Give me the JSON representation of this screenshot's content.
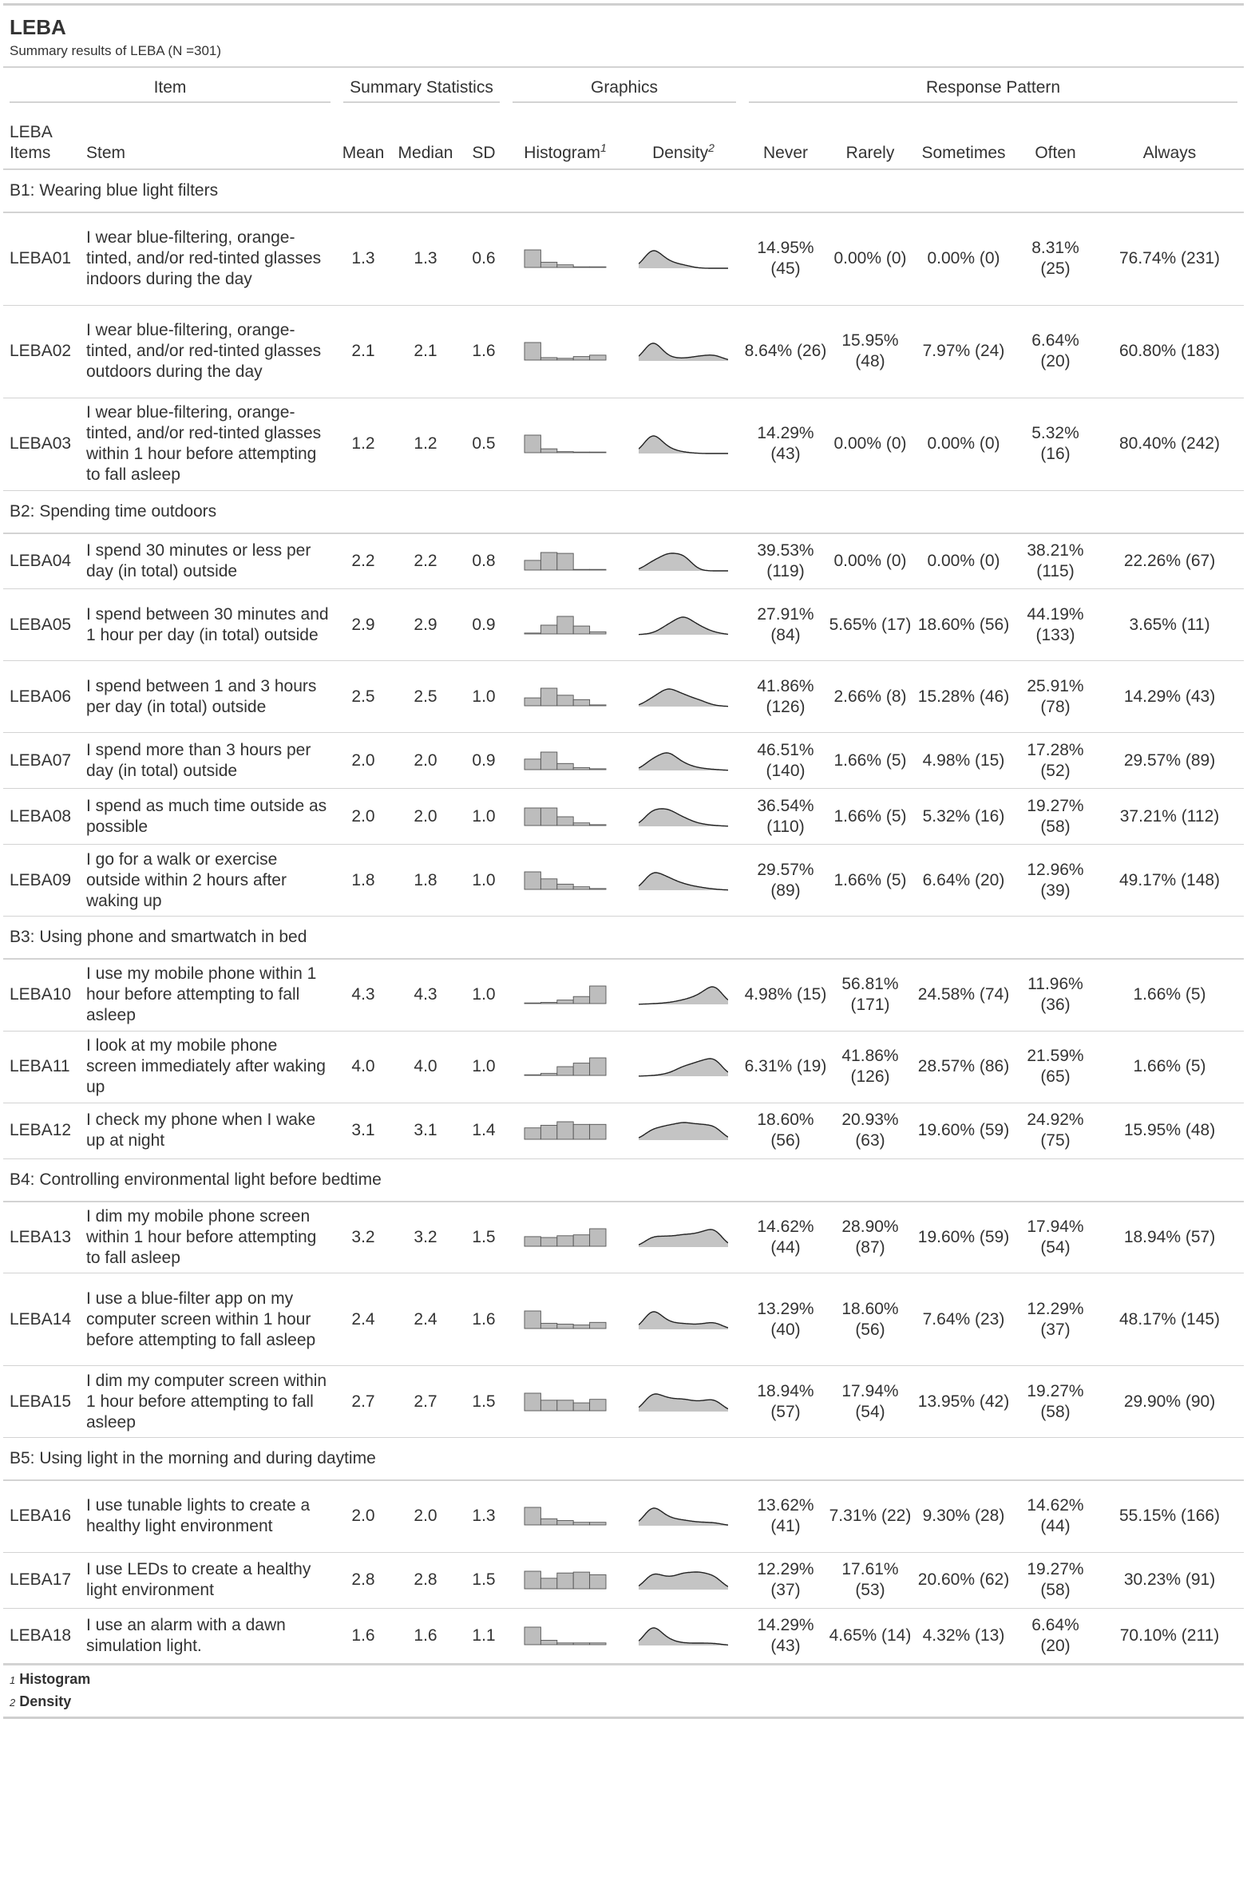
{
  "title": "LEBA",
  "subtitle": "Summary results of LEBA (N =301)",
  "spanners": {
    "item": "Item",
    "summary": "Summary Statistics",
    "graphics": "Graphics",
    "response": "Response Pattern"
  },
  "columns": {
    "items": "LEBA Items",
    "stem": "Stem",
    "mean": "Mean",
    "median": "Median",
    "sd": "SD",
    "histogram": "Histogram",
    "density": "Density",
    "never": "Never",
    "rarely": "Rarely",
    "sometimes": "Sometimes",
    "often": "Often",
    "always": "Always"
  },
  "footnotes": [
    {
      "mark": "1",
      "text": "Histogram"
    },
    {
      "mark": "2",
      "text": "Density"
    }
  ],
  "groups": [
    {
      "label": "B1: Wearing blue light filters",
      "rows": [
        {
          "id": "LEBA01",
          "stem": "I wear blue-filtering, orange-tinted, and/or red-tinted glasses indoors during the day",
          "mean": "1.3",
          "median": "1.3",
          "sd": "0.6",
          "hist": [
            1.0,
            0.3,
            0.15,
            0,
            0
          ],
          "never": "14.95% (45)",
          "rarely": "0.00% (0)",
          "sometimes": "0.00% (0)",
          "often": "8.31% (25)",
          "always": "76.74% (231)"
        },
        {
          "id": "LEBA02",
          "stem": "I wear blue-filtering, orange-tinted, and/or red-tinted glasses outdoors during the day",
          "mean": "2.1",
          "median": "2.1",
          "sd": "1.6",
          "hist": [
            1.0,
            0.14,
            0.1,
            0.2,
            0.28
          ],
          "never": "8.64% (26)",
          "rarely": "15.95% (48)",
          "sometimes": "7.97% (24)",
          "often": "6.64% (20)",
          "always": "60.80% (183)"
        },
        {
          "id": "LEBA03",
          "stem": "I wear blue-filtering, orange-tinted, and/or red-tinted glasses within 1 hour before attempting to fall asleep",
          "mean": "1.2",
          "median": "1.2",
          "sd": "0.5",
          "hist": [
            1.0,
            0.22,
            0.06,
            0,
            0
          ],
          "never": "14.29% (43)",
          "rarely": "0.00% (0)",
          "sometimes": "0.00% (0)",
          "often": "5.32% (16)",
          "always": "80.40% (242)"
        }
      ]
    },
    {
      "label": "B2: Spending time outdoors",
      "rows": [
        {
          "id": "LEBA04",
          "stem": "I spend 30 minutes or less per day (in total) outside",
          "mean": "2.2",
          "median": "2.2",
          "sd": "0.8",
          "hist": [
            0.55,
            1.0,
            0.95,
            0,
            0
          ],
          "never": "39.53% (119)",
          "rarely": "0.00% (0)",
          "sometimes": "0.00% (0)",
          "often": "38.21% (115)",
          "always": "22.26% (67)"
        },
        {
          "id": "LEBA05",
          "stem": "I spend between 30 minutes and 1 hour per day (in total) outside",
          "mean": "2.9",
          "median": "2.9",
          "sd": "0.9",
          "hist": [
            0.05,
            0.5,
            1.0,
            0.45,
            0.12
          ],
          "never": "27.91% (84)",
          "rarely": "5.65% (17)",
          "sometimes": "18.60% (56)",
          "often": "44.19% (133)",
          "always": "3.65% (11)"
        },
        {
          "id": "LEBA06",
          "stem": "I spend between 1 and 3 hours per day (in total) outside",
          "mean": "2.5",
          "median": "2.5",
          "sd": "1.0",
          "hist": [
            0.45,
            1.0,
            0.6,
            0.35,
            0.05
          ],
          "never": "41.86% (126)",
          "rarely": "2.66% (8)",
          "sometimes": "15.28% (46)",
          "often": "25.91% (78)",
          "always": "14.29% (43)"
        },
        {
          "id": "LEBA07",
          "stem": "I spend more than 3 hours per day (in total) outside",
          "mean": "2.0",
          "median": "2.0",
          "sd": "0.9",
          "hist": [
            0.6,
            1.0,
            0.35,
            0.12,
            0.05
          ],
          "never": "46.51% (140)",
          "rarely": "1.66% (5)",
          "sometimes": "4.98% (15)",
          "often": "17.28% (52)",
          "always": "29.57% (89)"
        },
        {
          "id": "LEBA08",
          "stem": "I spend as much time outside as possible",
          "mean": "2.0",
          "median": "2.0",
          "sd": "1.0",
          "hist": [
            1.0,
            1.0,
            0.5,
            0.15,
            0.05
          ],
          "never": "36.54% (110)",
          "rarely": "1.66% (5)",
          "sometimes": "5.32% (16)",
          "often": "19.27% (58)",
          "always": "37.21% (112)"
        },
        {
          "id": "LEBA09",
          "stem": "I go for a walk or exercise outside within 2 hours after waking up",
          "mean": "1.8",
          "median": "1.8",
          "sd": "1.0",
          "hist": [
            1.0,
            0.6,
            0.3,
            0.15,
            0.05
          ],
          "never": "29.57% (89)",
          "rarely": "1.66% (5)",
          "sometimes": "6.64% (20)",
          "often": "12.96% (39)",
          "always": "49.17% (148)"
        }
      ]
    },
    {
      "label": "B3: Using phone and smartwatch in bed",
      "rows": [
        {
          "id": "LEBA10",
          "stem": "I use my mobile phone within 1 hour before attempting to fall asleep",
          "mean": "4.3",
          "median": "4.3",
          "sd": "1.0",
          "hist": [
            0.03,
            0.07,
            0.2,
            0.4,
            1.0
          ],
          "never": "4.98% (15)",
          "rarely": "56.81% (171)",
          "sometimes": "24.58% (74)",
          "often": "11.96% (36)",
          "always": "1.66% (5)"
        },
        {
          "id": "LEBA11",
          "stem": "I look at my mobile phone screen immediately after waking up",
          "mean": "4.0",
          "median": "4.0",
          "sd": "1.0",
          "hist": [
            0.03,
            0.12,
            0.5,
            0.7,
            1.0
          ],
          "never": "6.31% (19)",
          "rarely": "41.86% (126)",
          "sometimes": "28.57% (86)",
          "often": "21.59% (65)",
          "always": "1.66% (5)"
        },
        {
          "id": "LEBA12",
          "stem": "I check my phone when I wake up at night",
          "mean": "3.1",
          "median": "3.1",
          "sd": "1.4",
          "hist": [
            0.65,
            0.8,
            1.0,
            0.85,
            0.85
          ],
          "never": "18.60% (56)",
          "rarely": "20.93% (63)",
          "sometimes": "19.60% (59)",
          "often": "24.92% (75)",
          "always": "15.95% (48)"
        }
      ]
    },
    {
      "label": "B4: Controlling environmental light before bedtime",
      "rows": [
        {
          "id": "LEBA13",
          "stem": "I dim my mobile phone screen within 1 hour before attempting to fall asleep",
          "mean": "3.2",
          "median": "3.2",
          "sd": "1.5",
          "hist": [
            0.55,
            0.5,
            0.6,
            0.65,
            1.0
          ],
          "never": "14.62% (44)",
          "rarely": "28.90% (87)",
          "sometimes": "19.60% (59)",
          "often": "17.94% (54)",
          "always": "18.94% (57)"
        },
        {
          "id": "LEBA14",
          "stem": "I use a blue-filter app on my computer screen within 1 hour before attempting to fall asleep",
          "mean": "2.4",
          "median": "2.4",
          "sd": "1.6",
          "hist": [
            1.0,
            0.3,
            0.25,
            0.2,
            0.35
          ],
          "never": "13.29% (40)",
          "rarely": "18.60% (56)",
          "sometimes": "7.64% (23)",
          "often": "12.29% (37)",
          "always": "48.17% (145)"
        },
        {
          "id": "LEBA15",
          "stem": "I dim my computer screen within 1 hour before attempting to fall asleep",
          "mean": "2.7",
          "median": "2.7",
          "sd": "1.5",
          "hist": [
            1.0,
            0.6,
            0.6,
            0.45,
            0.65
          ],
          "never": "18.94% (57)",
          "rarely": "17.94% (54)",
          "sometimes": "13.95% (42)",
          "often": "19.27% (58)",
          "always": "29.90% (90)"
        }
      ]
    },
    {
      "label": "B5: Using light in the morning and during daytime",
      "rows": [
        {
          "id": "LEBA16",
          "stem": "I use tunable lights to create a healthy light environment",
          "mean": "2.0",
          "median": "2.0",
          "sd": "1.3",
          "hist": [
            1.0,
            0.35,
            0.25,
            0.15,
            0.15
          ],
          "never": "13.62% (41)",
          "rarely": "7.31% (22)",
          "sometimes": "9.30% (28)",
          "often": "14.62% (44)",
          "always": "55.15% (166)"
        },
        {
          "id": "LEBA17",
          "stem": "I use LEDs to create a healthy light environment",
          "mean": "2.8",
          "median": "2.8",
          "sd": "1.5",
          "hist": [
            1.0,
            0.6,
            0.9,
            0.95,
            0.8
          ],
          "never": "12.29% (37)",
          "rarely": "17.61% (53)",
          "sometimes": "20.60% (62)",
          "often": "19.27% (58)",
          "always": "30.23% (91)"
        },
        {
          "id": "LEBA18",
          "stem": "I use an alarm with a dawn simulation light.",
          "mean": "1.6",
          "median": "1.6",
          "sd": "1.1",
          "hist": [
            1.0,
            0.25,
            0.1,
            0.1,
            0.1
          ],
          "never": "14.29% (43)",
          "rarely": "4.65% (14)",
          "sometimes": "4.32% (13)",
          "often": "6.64% (20)",
          "always": "70.10% (211)"
        }
      ]
    }
  ]
}
